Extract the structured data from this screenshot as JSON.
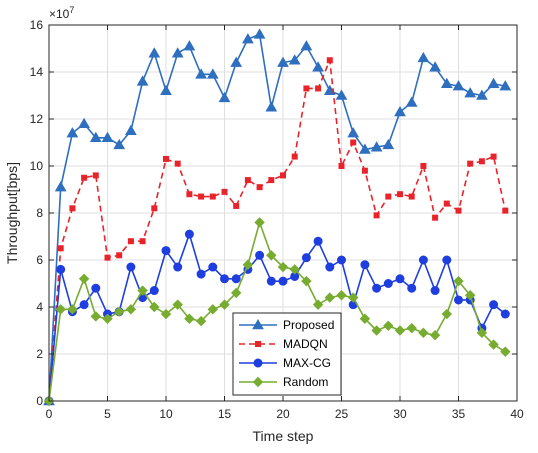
{
  "chart_data": {
    "type": "line",
    "xlabel": "Time step",
    "ylabel": "Throughput[bps]",
    "y_exponent_label": "×10^7",
    "y_scale_multiplier": 10000000,
    "xlim": [
      0,
      40
    ],
    "ylim": [
      0,
      16
    ],
    "x_ticks": [
      0,
      5,
      10,
      15,
      20,
      25,
      30,
      35,
      40
    ],
    "y_ticks": [
      0,
      2,
      4,
      6,
      8,
      10,
      12,
      14,
      16
    ],
    "grid": true,
    "legend_placement": "bottom-center",
    "x": [
      0,
      1,
      2,
      3,
      4,
      5,
      6,
      7,
      8,
      9,
      10,
      11,
      12,
      13,
      14,
      15,
      16,
      17,
      18,
      19,
      20,
      21,
      22,
      23,
      24,
      25,
      26,
      27,
      28,
      29,
      30,
      31,
      32,
      33,
      34,
      35,
      36,
      37,
      38,
      39
    ],
    "series": [
      {
        "name": "Proposed",
        "color": "#2f6fbf",
        "line_style": "solid",
        "marker": "triangle",
        "values": [
          0,
          9.1,
          11.4,
          11.8,
          11.2,
          11.2,
          10.9,
          11.5,
          13.6,
          14.8,
          13.2,
          14.8,
          15.1,
          13.9,
          13.9,
          12.9,
          14.4,
          15.4,
          15.6,
          12.5,
          14.4,
          14.5,
          15.1,
          14.2,
          13.2,
          13.0,
          11.4,
          10.7,
          10.8,
          10.9,
          12.3,
          12.7,
          14.6,
          14.2,
          13.5,
          13.4,
          13.1,
          13.0,
          13.5,
          13.4
        ]
      },
      {
        "name": "MADQN",
        "color": "#e8242a",
        "line_style": "dashed",
        "marker": "square",
        "values": [
          0,
          6.5,
          8.2,
          9.5,
          9.6,
          6.1,
          6.2,
          6.8,
          6.8,
          8.2,
          10.3,
          10.1,
          8.8,
          8.7,
          8.7,
          8.9,
          8.3,
          9.4,
          9.1,
          9.4,
          9.6,
          10.4,
          13.3,
          13.3,
          14.5,
          10.0,
          11.0,
          9.8,
          7.9,
          8.7,
          8.8,
          8.7,
          10.0,
          7.8,
          8.4,
          8.1,
          10.1,
          10.2,
          10.4,
          8.1
        ]
      },
      {
        "name": "MAX-CG",
        "color": "#1f3ee0",
        "line_style": "solid",
        "marker": "circle",
        "values": [
          0,
          5.6,
          3.8,
          4.1,
          4.8,
          3.7,
          3.8,
          5.7,
          4.4,
          4.7,
          6.4,
          5.7,
          7.1,
          5.4,
          5.7,
          5.2,
          5.2,
          5.6,
          6.2,
          5.1,
          5.1,
          5.3,
          6.1,
          6.8,
          5.7,
          6.0,
          4.1,
          5.8,
          4.8,
          5.0,
          5.2,
          4.8,
          6.0,
          4.7,
          6.0,
          4.3,
          4.3,
          3.1,
          4.1,
          3.7
        ]
      },
      {
        "name": "Random",
        "color": "#77ac30",
        "line_style": "solid",
        "marker": "diamond",
        "values": [
          0,
          3.9,
          3.9,
          5.2,
          3.6,
          3.5,
          3.8,
          3.9,
          4.7,
          4.0,
          3.7,
          4.1,
          3.5,
          3.4,
          3.9,
          4.1,
          4.6,
          5.8,
          7.6,
          6.2,
          5.7,
          5.6,
          5.1,
          4.1,
          4.4,
          4.5,
          4.4,
          3.5,
          3.0,
          3.2,
          3.0,
          3.1,
          2.9,
          2.8,
          3.7,
          5.1,
          4.5,
          2.9,
          2.4,
          2.1
        ]
      }
    ]
  }
}
